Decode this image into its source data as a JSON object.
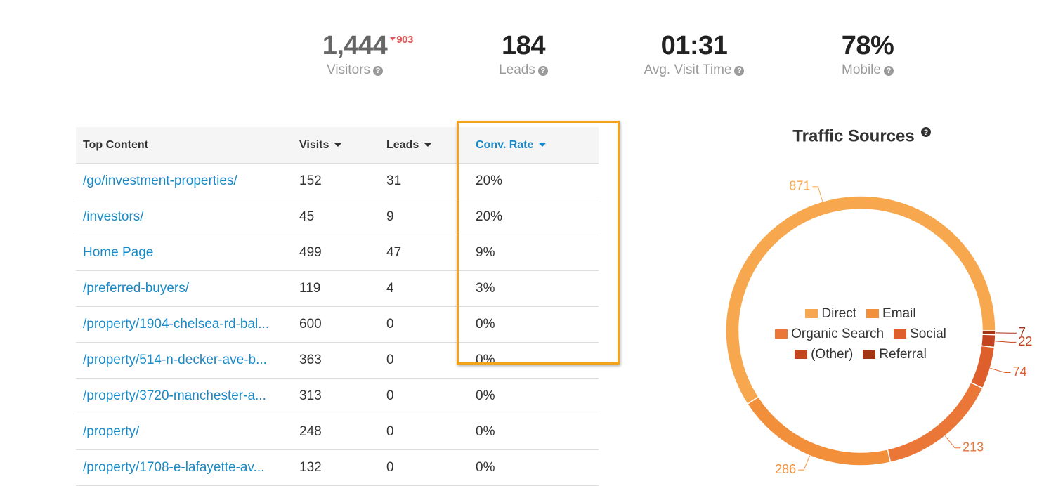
{
  "stats": [
    {
      "value": "1,444",
      "change": "903",
      "label": "Visitors"
    },
    {
      "value": "184",
      "label": "Leads"
    },
    {
      "value": "01:31",
      "label": "Avg. Visit Time"
    },
    {
      "value": "78%",
      "label": "Mobile"
    }
  ],
  "table": {
    "headers": [
      "Top Content",
      "Visits",
      "Leads",
      "Conv. Rate"
    ],
    "rows": [
      [
        "/go/investment-properties/",
        "152",
        "31",
        "20%"
      ],
      [
        "/investors/",
        "45",
        "9",
        "20%"
      ],
      [
        "Home Page",
        "499",
        "47",
        "9%"
      ],
      [
        "/preferred-buyers/",
        "119",
        "4",
        "3%"
      ],
      [
        "/property/1904-chelsea-rd-bal...",
        "600",
        "0",
        "0%"
      ],
      [
        "/property/514-n-decker-ave-b...",
        "363",
        "0",
        "0%"
      ],
      [
        "/property/3720-manchester-a...",
        "313",
        "0",
        "0%"
      ],
      [
        "/property/",
        "248",
        "0",
        "0%"
      ],
      [
        "/property/1708-e-lafayette-av...",
        "132",
        "0",
        "0%"
      ]
    ]
  },
  "chart_data": {
    "type": "donut",
    "title": "Traffic Sources",
    "categories": [
      "Direct",
      "Email",
      "Organic Search",
      "Social",
      "(Other)",
      "Referral"
    ],
    "values": [
      871,
      286,
      213,
      74,
      22,
      7
    ],
    "colors": [
      "#f7a84e",
      "#f28f3b",
      "#ea7637",
      "#df5f2c",
      "#c2451f",
      "#a33417"
    ]
  }
}
